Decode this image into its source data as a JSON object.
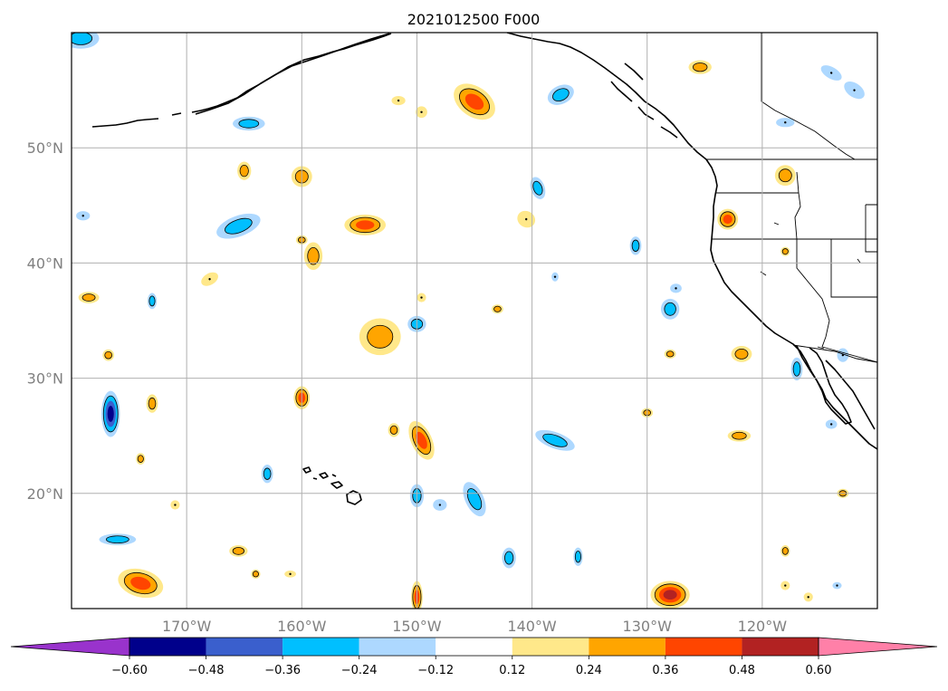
{
  "map": {
    "title": "2021012500 F000",
    "lon_ticks": [
      {
        "lon": -170,
        "label": "170°W"
      },
      {
        "lon": -160,
        "label": "160°W"
      },
      {
        "lon": -150,
        "label": "150°W"
      },
      {
        "lon": -140,
        "label": "140°W"
      },
      {
        "lon": -130,
        "label": "130°W"
      },
      {
        "lon": -120,
        "label": "120°W"
      }
    ],
    "lat_ticks": [
      {
        "lat": 50,
        "label": "50°N"
      },
      {
        "lat": 40,
        "label": "40°N"
      },
      {
        "lat": 30,
        "label": "30°N"
      },
      {
        "lat": 20,
        "label": "20°N"
      }
    ],
    "extent": {
      "lon_min": -180,
      "lon_max": -110,
      "lat_min": 10,
      "lat_max": 60
    }
  },
  "colorbar": {
    "levels": [
      "-0.60",
      "-0.48",
      "-0.36",
      "-0.24",
      "-0.12",
      "0.12",
      "0.24",
      "0.36",
      "0.48",
      "0.60"
    ],
    "colors": [
      "#9933cc",
      "#00008b",
      "#3a5fcd",
      "#00bfff",
      "#add8ff",
      "#ffffff",
      "#ffe88a",
      "#ffa500",
      "#ff4500",
      "#b22222",
      "#ff80a8"
    ]
  },
  "features": [
    {
      "lon": -179.2,
      "lat": 59.5,
      "rx": 1.6,
      "ry": 0.9,
      "level": -0.24
    },
    {
      "lon": -145.0,
      "lat": 54.0,
      "rx": 2.0,
      "ry": 1.3,
      "level": 0.36,
      "rot": 35
    },
    {
      "lon": -137.5,
      "lat": 54.6,
      "rx": 1.2,
      "ry": 0.8,
      "level": -0.24,
      "rot": -25
    },
    {
      "lon": -164.6,
      "lat": 52.1,
      "rx": 1.4,
      "ry": 0.6,
      "level": -0.24
    },
    {
      "lon": -151.6,
      "lat": 54.1,
      "rx": 0.6,
      "ry": 0.4,
      "level": 0.12
    },
    {
      "lon": -149.6,
      "lat": 53.1,
      "rx": 0.5,
      "ry": 0.5,
      "level": 0.12
    },
    {
      "lon": -125.4,
      "lat": 57.0,
      "rx": 1.0,
      "ry": 0.6,
      "level": 0.24
    },
    {
      "lon": -114.0,
      "lat": 56.5,
      "rx": 1.0,
      "ry": 0.5,
      "level": -0.12,
      "rot": 30
    },
    {
      "lon": -112.0,
      "lat": 55.0,
      "rx": 1.0,
      "ry": 0.6,
      "level": -0.12,
      "rot": 35
    },
    {
      "lon": -118.0,
      "lat": 52.2,
      "rx": 0.8,
      "ry": 0.4,
      "level": -0.12
    },
    {
      "lon": -165.0,
      "lat": 48.0,
      "rx": 0.6,
      "ry": 0.8,
      "level": 0.24
    },
    {
      "lon": -160.0,
      "lat": 47.5,
      "rx": 0.9,
      "ry": 0.9,
      "level": 0.24
    },
    {
      "lon": -118.0,
      "lat": 47.6,
      "rx": 0.9,
      "ry": 0.9,
      "level": 0.24
    },
    {
      "lon": -139.5,
      "lat": 46.5,
      "rx": 0.6,
      "ry": 1.0,
      "level": -0.24,
      "rot": -20
    },
    {
      "lon": -165.5,
      "lat": 43.2,
      "rx": 2.0,
      "ry": 0.9,
      "level": -0.24,
      "rot": -20
    },
    {
      "lon": -179.0,
      "lat": 44.1,
      "rx": 0.6,
      "ry": 0.4,
      "level": -0.12
    },
    {
      "lon": -154.5,
      "lat": 43.3,
      "rx": 1.8,
      "ry": 0.9,
      "level": 0.36
    },
    {
      "lon": -140.5,
      "lat": 43.8,
      "rx": 0.8,
      "ry": 0.7,
      "level": 0.12,
      "rot": 30
    },
    {
      "lon": -123.0,
      "lat": 43.8,
      "rx": 0.9,
      "ry": 0.9,
      "level": 0.36
    },
    {
      "lon": -131.0,
      "lat": 41.5,
      "rx": 0.5,
      "ry": 0.8,
      "level": -0.24
    },
    {
      "lon": -160.0,
      "lat": 42.0,
      "rx": 0.5,
      "ry": 0.4,
      "level": 0.24
    },
    {
      "lon": -159.0,
      "lat": 40.6,
      "rx": 0.8,
      "ry": 1.2,
      "level": 0.24
    },
    {
      "lon": -118.0,
      "lat": 41.0,
      "rx": 0.4,
      "ry": 0.4,
      "level": 0.24
    },
    {
      "lon": -168.0,
      "lat": 38.6,
      "rx": 0.8,
      "ry": 0.5,
      "level": 0.12,
      "rot": -30
    },
    {
      "lon": -138.0,
      "lat": 38.8,
      "rx": 0.3,
      "ry": 0.4,
      "level": -0.12
    },
    {
      "lon": -178.5,
      "lat": 37.0,
      "rx": 0.9,
      "ry": 0.5,
      "level": 0.24
    },
    {
      "lon": -173.0,
      "lat": 36.7,
      "rx": 0.4,
      "ry": 0.7,
      "level": -0.24
    },
    {
      "lon": -149.6,
      "lat": 37.0,
      "rx": 0.4,
      "ry": 0.4,
      "level": 0.12
    },
    {
      "lon": -143.0,
      "lat": 36.0,
      "rx": 0.5,
      "ry": 0.4,
      "level": 0.24
    },
    {
      "lon": -127.5,
      "lat": 37.8,
      "rx": 0.5,
      "ry": 0.4,
      "level": -0.12
    },
    {
      "lon": -128.0,
      "lat": 36.0,
      "rx": 0.8,
      "ry": 0.9,
      "level": -0.24
    },
    {
      "lon": -150.0,
      "lat": 34.7,
      "rx": 0.8,
      "ry": 0.7,
      "level": -0.24
    },
    {
      "lon": -153.2,
      "lat": 33.6,
      "rx": 1.8,
      "ry": 1.6,
      "level": 0.24
    },
    {
      "lon": -176.8,
      "lat": 32.0,
      "rx": 0.5,
      "ry": 0.5,
      "level": 0.24
    },
    {
      "lon": -128.0,
      "lat": 32.1,
      "rx": 0.5,
      "ry": 0.4,
      "level": 0.24
    },
    {
      "lon": -121.8,
      "lat": 32.1,
      "rx": 0.9,
      "ry": 0.7,
      "level": 0.24
    },
    {
      "lon": -113.0,
      "lat": 32.0,
      "rx": 0.5,
      "ry": 0.6,
      "level": -0.12
    },
    {
      "lon": -117.0,
      "lat": 30.8,
      "rx": 0.5,
      "ry": 1.0,
      "level": -0.24
    },
    {
      "lon": -160.0,
      "lat": 28.3,
      "rx": 0.7,
      "ry": 1.0,
      "level": 0.36
    },
    {
      "lon": -173.0,
      "lat": 27.8,
      "rx": 0.5,
      "ry": 0.8,
      "level": 0.24
    },
    {
      "lon": -176.6,
      "lat": 26.9,
      "rx": 0.8,
      "ry": 2.0,
      "level": -0.48
    },
    {
      "lon": -130.0,
      "lat": 27.0,
      "rx": 0.5,
      "ry": 0.4,
      "level": 0.24
    },
    {
      "lon": -114.0,
      "lat": 26.0,
      "rx": 0.5,
      "ry": 0.4,
      "level": -0.12
    },
    {
      "lon": -152.0,
      "lat": 25.5,
      "rx": 0.5,
      "ry": 0.6,
      "level": 0.24
    },
    {
      "lon": -149.6,
      "lat": 24.6,
      "rx": 0.9,
      "ry": 1.8,
      "level": 0.36,
      "rot": -25
    },
    {
      "lon": -138.0,
      "lat": 24.6,
      "rx": 1.8,
      "ry": 0.7,
      "level": -0.24,
      "rot": 20
    },
    {
      "lon": -122.0,
      "lat": 25.0,
      "rx": 1.0,
      "ry": 0.5,
      "level": 0.24
    },
    {
      "lon": -174.0,
      "lat": 23.0,
      "rx": 0.4,
      "ry": 0.5,
      "level": 0.24
    },
    {
      "lon": -163.0,
      "lat": 21.7,
      "rx": 0.5,
      "ry": 0.8,
      "level": -0.24
    },
    {
      "lon": -150.0,
      "lat": 19.8,
      "rx": 0.6,
      "ry": 1.0,
      "level": -0.24
    },
    {
      "lon": -148.0,
      "lat": 19.0,
      "rx": 0.6,
      "ry": 0.5,
      "level": -0.12
    },
    {
      "lon": -145.0,
      "lat": 19.5,
      "rx": 0.8,
      "ry": 1.6,
      "level": -0.24,
      "rot": -25
    },
    {
      "lon": -171.0,
      "lat": 19.0,
      "rx": 0.4,
      "ry": 0.4,
      "level": 0.12
    },
    {
      "lon": -113.0,
      "lat": 20.0,
      "rx": 0.5,
      "ry": 0.4,
      "level": 0.24
    },
    {
      "lon": -176.0,
      "lat": 16.0,
      "rx": 1.6,
      "ry": 0.5,
      "level": -0.24
    },
    {
      "lon": -165.5,
      "lat": 15.0,
      "rx": 0.8,
      "ry": 0.5,
      "level": 0.24
    },
    {
      "lon": -142.0,
      "lat": 14.4,
      "rx": 0.6,
      "ry": 0.9,
      "level": -0.24
    },
    {
      "lon": -136.0,
      "lat": 14.5,
      "rx": 0.4,
      "ry": 0.8,
      "level": -0.24
    },
    {
      "lon": -118.0,
      "lat": 15.0,
      "rx": 0.4,
      "ry": 0.5,
      "level": 0.24
    },
    {
      "lon": -164.0,
      "lat": 13.0,
      "rx": 0.4,
      "ry": 0.4,
      "level": 0.24
    },
    {
      "lon": -161.0,
      "lat": 13.0,
      "rx": 0.5,
      "ry": 0.3,
      "level": 0.12
    },
    {
      "lon": -174.0,
      "lat": 12.2,
      "rx": 2.0,
      "ry": 1.2,
      "level": 0.36,
      "rot": 15
    },
    {
      "lon": -150.0,
      "lat": 11.0,
      "rx": 0.5,
      "ry": 1.4,
      "level": 0.36
    },
    {
      "lon": -128.0,
      "lat": 11.2,
      "rx": 1.7,
      "ry": 1.2,
      "level": 0.48
    },
    {
      "lon": -118.0,
      "lat": 12.0,
      "rx": 0.4,
      "ry": 0.4,
      "level": 0.12
    },
    {
      "lon": -116.0,
      "lat": 11.0,
      "rx": 0.4,
      "ry": 0.4,
      "level": 0.12
    },
    {
      "lon": -113.5,
      "lat": 12.0,
      "rx": 0.4,
      "ry": 0.3,
      "level": -0.12
    }
  ]
}
